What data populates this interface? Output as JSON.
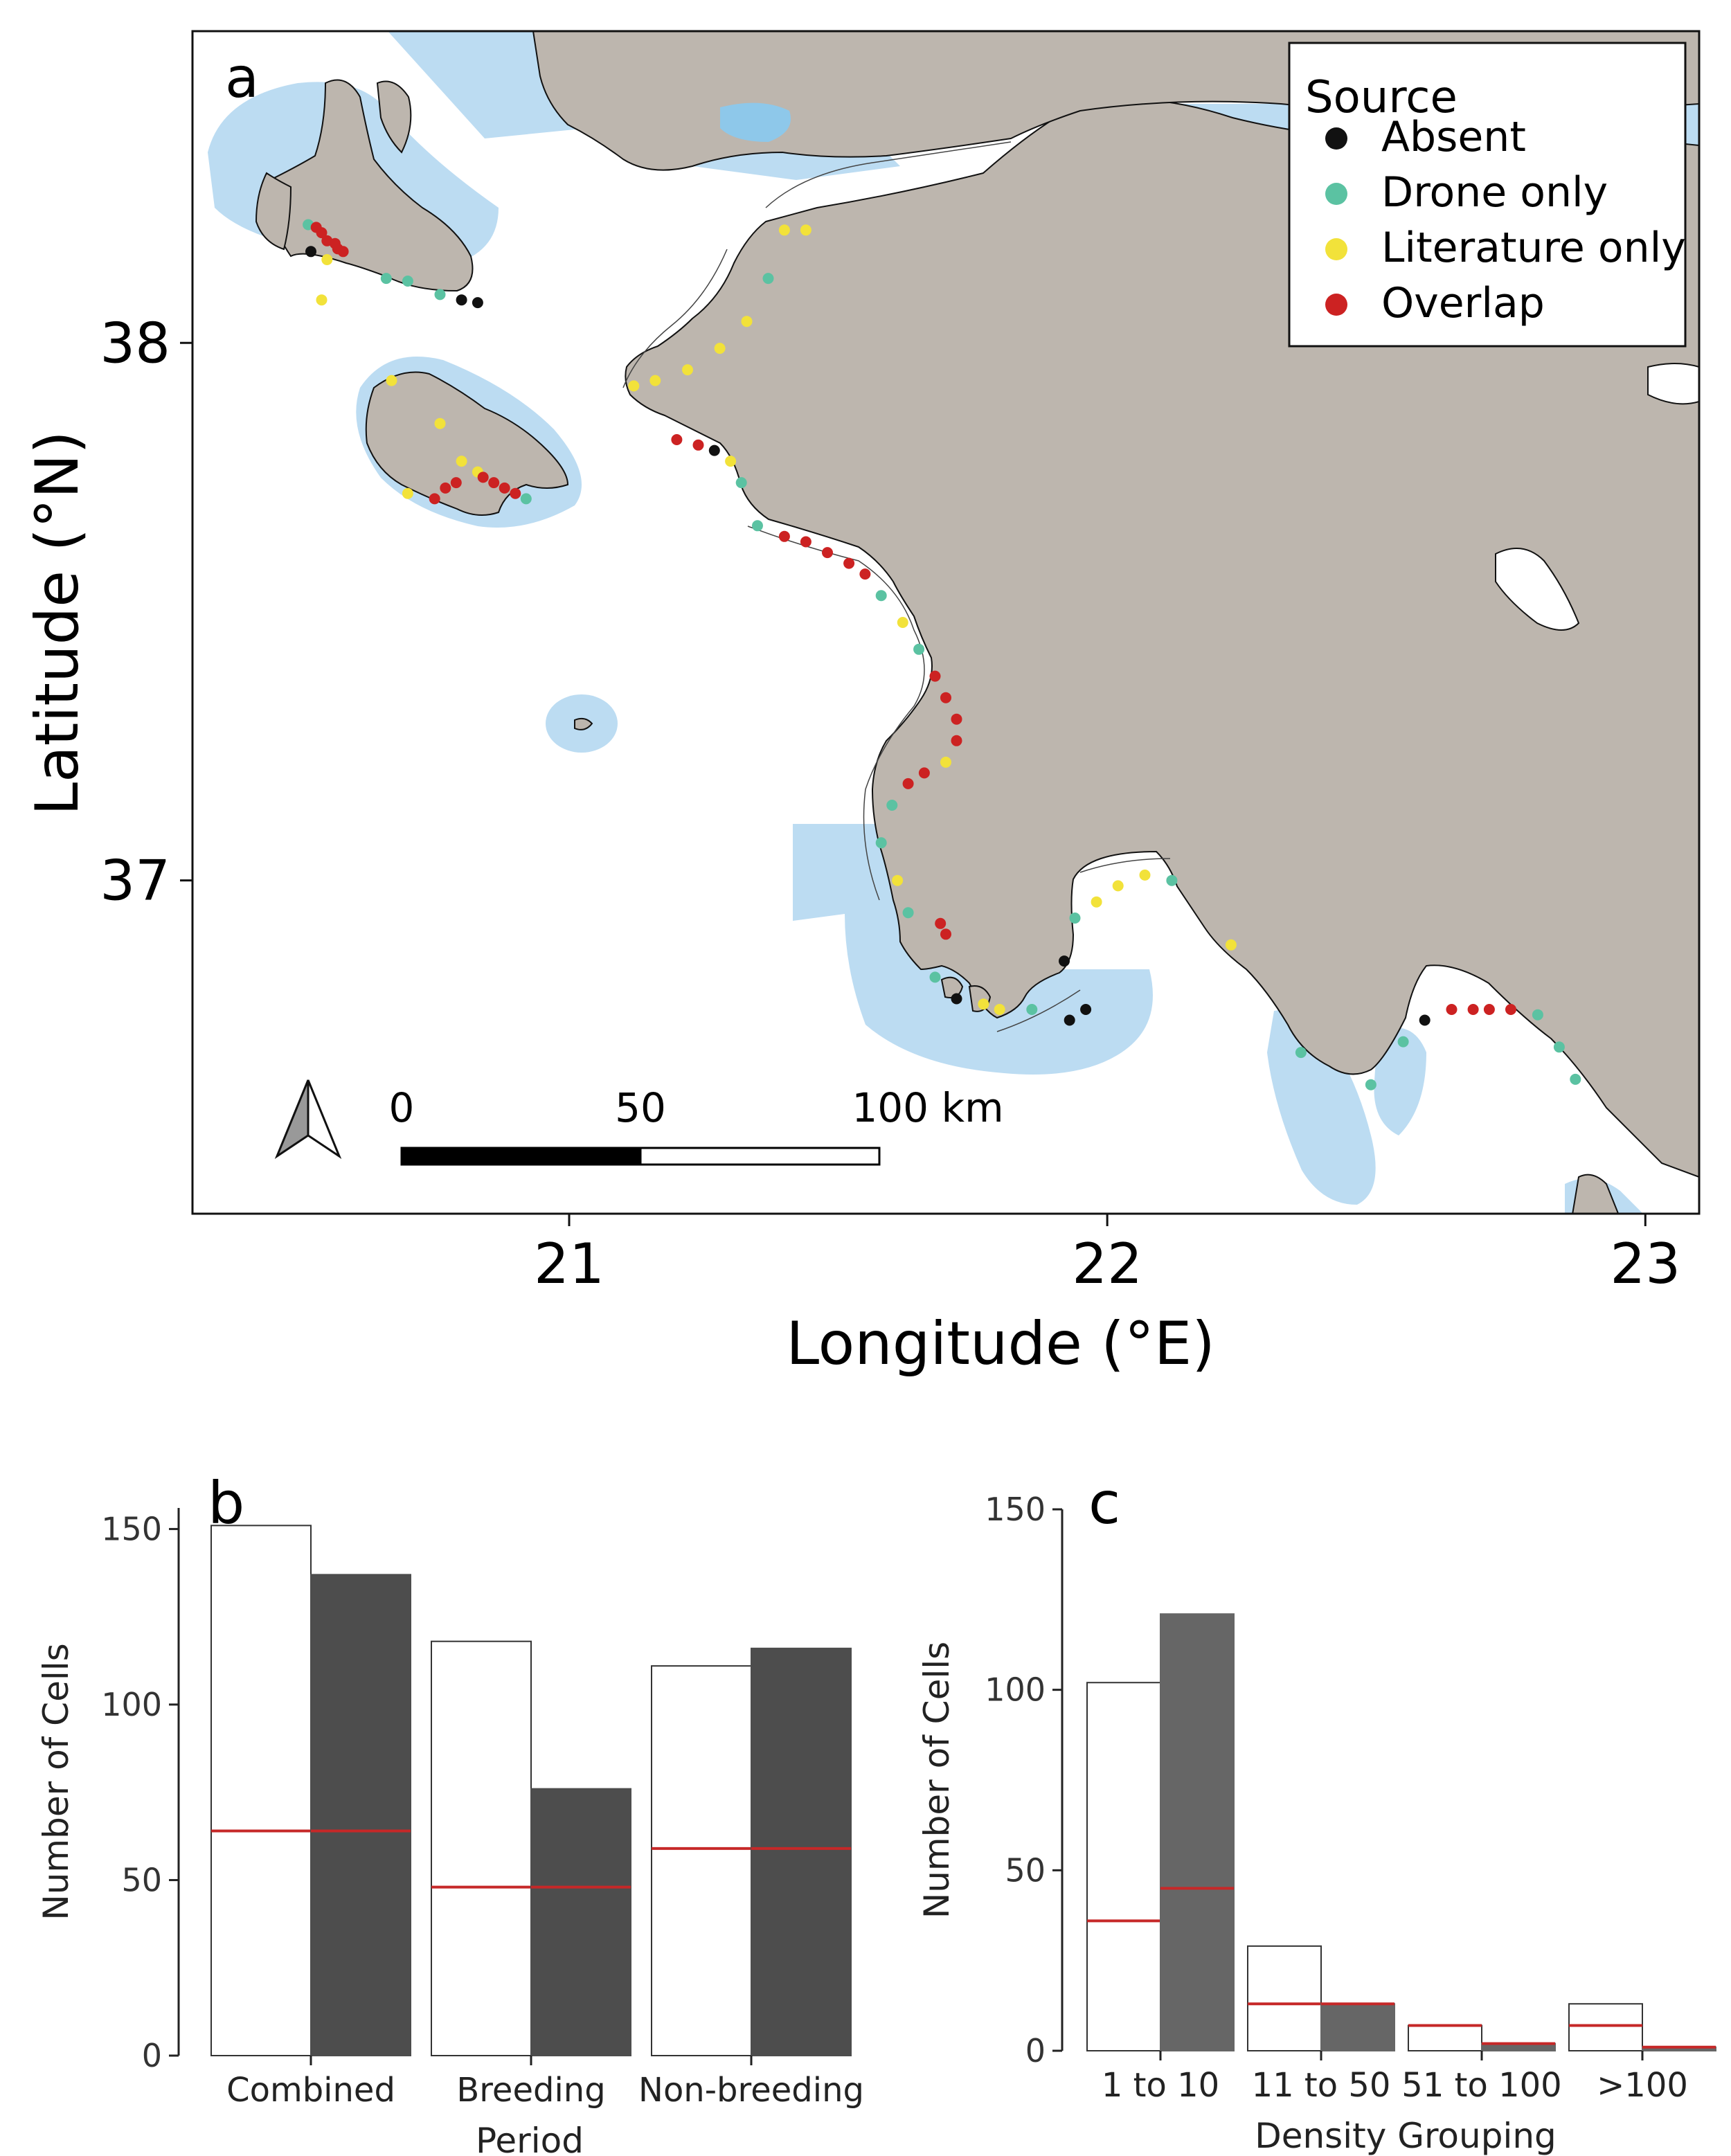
{
  "chart_data": [
    {
      "panel": "a",
      "type": "map",
      "xlabel": "Longitude (°E)",
      "ylabel": "Latitude (°N)",
      "xlim": [
        20.3,
        23.1
      ],
      "ylim": [
        36.38,
        38.58
      ],
      "x_ticks": [
        "21",
        "22",
        "23"
      ],
      "y_ticks": [
        "38",
        "37"
      ],
      "legend": {
        "title": "Source",
        "position": "top-right",
        "items": [
          {
            "label": "Absent",
            "color": "#111111"
          },
          {
            "label": "Drone only",
            "color": "#5bc2a2"
          },
          {
            "label": "Literature only",
            "color": "#f2e23a"
          },
          {
            "label": "Overlap",
            "color": "#cc2222"
          }
        ]
      },
      "scale_bar": {
        "ticks": [
          "0",
          "50",
          "100 km"
        ]
      },
      "colors": {
        "land": "#bdb6ae",
        "buffer": "#bcdcf2",
        "sea": "#ffffff",
        "outline": "#111111"
      },
      "icons": [
        "north-arrow-icon"
      ],
      "points": [
        {
          "lon": 20.515,
          "lat": 38.22,
          "source": "Drone only"
        },
        {
          "lon": 20.53,
          "lat": 38.215,
          "source": "Overlap"
        },
        {
          "lon": 20.54,
          "lat": 38.205,
          "source": "Overlap"
        },
        {
          "lon": 20.55,
          "lat": 38.19,
          "source": "Overlap"
        },
        {
          "lon": 20.565,
          "lat": 38.185,
          "source": "Overlap"
        },
        {
          "lon": 20.57,
          "lat": 38.175,
          "source": "Overlap"
        },
        {
          "lon": 20.58,
          "lat": 38.17,
          "source": "Overlap"
        },
        {
          "lon": 20.52,
          "lat": 38.17,
          "source": "Absent"
        },
        {
          "lon": 20.55,
          "lat": 38.155,
          "source": "Literature only"
        },
        {
          "lon": 20.54,
          "lat": 38.08,
          "source": "Literature only"
        },
        {
          "lon": 20.66,
          "lat": 38.12,
          "source": "Drone only"
        },
        {
          "lon": 20.7,
          "lat": 38.115,
          "source": "Drone only"
        },
        {
          "lon": 20.76,
          "lat": 38.09,
          "source": "Drone only"
        },
        {
          "lon": 20.8,
          "lat": 38.08,
          "source": "Absent"
        },
        {
          "lon": 20.83,
          "lat": 38.075,
          "source": "Absent"
        },
        {
          "lon": 20.67,
          "lat": 37.93,
          "source": "Literature only"
        },
        {
          "lon": 20.76,
          "lat": 37.85,
          "source": "Literature only"
        },
        {
          "lon": 20.8,
          "lat": 37.78,
          "source": "Literature only"
        },
        {
          "lon": 20.83,
          "lat": 37.76,
          "source": "Literature only"
        },
        {
          "lon": 20.84,
          "lat": 37.75,
          "source": "Overlap"
        },
        {
          "lon": 20.86,
          "lat": 37.74,
          "source": "Overlap"
        },
        {
          "lon": 20.88,
          "lat": 37.73,
          "source": "Overlap"
        },
        {
          "lon": 20.9,
          "lat": 37.72,
          "source": "Overlap"
        },
        {
          "lon": 20.79,
          "lat": 37.74,
          "source": "Overlap"
        },
        {
          "lon": 20.77,
          "lat": 37.73,
          "source": "Overlap"
        },
        {
          "lon": 20.75,
          "lat": 37.71,
          "source": "Overlap"
        },
        {
          "lon": 20.7,
          "lat": 37.72,
          "source": "Literature only"
        },
        {
          "lon": 20.92,
          "lat": 37.71,
          "source": "Drone only"
        },
        {
          "lon": 21.4,
          "lat": 38.21,
          "source": "Literature only"
        },
        {
          "lon": 21.44,
          "lat": 38.21,
          "source": "Literature only"
        },
        {
          "lon": 21.37,
          "lat": 38.12,
          "source": "Drone only"
        },
        {
          "lon": 21.33,
          "lat": 38.04,
          "source": "Literature only"
        },
        {
          "lon": 21.28,
          "lat": 37.99,
          "source": "Literature only"
        },
        {
          "lon": 21.22,
          "lat": 37.95,
          "source": "Literature only"
        },
        {
          "lon": 21.16,
          "lat": 37.93,
          "source": "Literature only"
        },
        {
          "lon": 21.12,
          "lat": 37.92,
          "source": "Literature only"
        },
        {
          "lon": 21.2,
          "lat": 37.82,
          "source": "Overlap"
        },
        {
          "lon": 21.24,
          "lat": 37.81,
          "source": "Overlap"
        },
        {
          "lon": 21.27,
          "lat": 37.8,
          "source": "Absent"
        },
        {
          "lon": 21.3,
          "lat": 37.78,
          "source": "Literature only"
        },
        {
          "lon": 21.32,
          "lat": 37.74,
          "source": "Drone only"
        },
        {
          "lon": 21.35,
          "lat": 37.66,
          "source": "Drone only"
        },
        {
          "lon": 21.4,
          "lat": 37.64,
          "source": "Overlap"
        },
        {
          "lon": 21.44,
          "lat": 37.63,
          "source": "Overlap"
        },
        {
          "lon": 21.48,
          "lat": 37.61,
          "source": "Overlap"
        },
        {
          "lon": 21.52,
          "lat": 37.59,
          "source": "Overlap"
        },
        {
          "lon": 21.55,
          "lat": 37.57,
          "source": "Overlap"
        },
        {
          "lon": 21.58,
          "lat": 37.53,
          "source": "Drone only"
        },
        {
          "lon": 21.62,
          "lat": 37.48,
          "source": "Literature only"
        },
        {
          "lon": 21.65,
          "lat": 37.43,
          "source": "Drone only"
        },
        {
          "lon": 21.68,
          "lat": 37.38,
          "source": "Overlap"
        },
        {
          "lon": 21.7,
          "lat": 37.34,
          "source": "Overlap"
        },
        {
          "lon": 21.72,
          "lat": 37.3,
          "source": "Overlap"
        },
        {
          "lon": 21.72,
          "lat": 37.26,
          "source": "Overlap"
        },
        {
          "lon": 21.7,
          "lat": 37.22,
          "source": "Literature only"
        },
        {
          "lon": 21.66,
          "lat": 37.2,
          "source": "Overlap"
        },
        {
          "lon": 21.63,
          "lat": 37.18,
          "source": "Overlap"
        },
        {
          "lon": 21.6,
          "lat": 37.14,
          "source": "Drone only"
        },
        {
          "lon": 21.58,
          "lat": 37.07,
          "source": "Drone only"
        },
        {
          "lon": 21.61,
          "lat": 37.0,
          "source": "Literature only"
        },
        {
          "lon": 21.63,
          "lat": 36.94,
          "source": "Drone only"
        },
        {
          "lon": 21.69,
          "lat": 36.92,
          "source": "Overlap"
        },
        {
          "lon": 21.7,
          "lat": 36.9,
          "source": "Overlap"
        },
        {
          "lon": 21.68,
          "lat": 36.82,
          "source": "Drone only"
        },
        {
          "lon": 21.72,
          "lat": 36.78,
          "source": "Absent"
        },
        {
          "lon": 21.77,
          "lat": 36.77,
          "source": "Literature only"
        },
        {
          "lon": 21.8,
          "lat": 36.76,
          "source": "Literature only"
        },
        {
          "lon": 21.86,
          "lat": 36.76,
          "source": "Drone only"
        },
        {
          "lon": 21.93,
          "lat": 36.74,
          "source": "Absent"
        },
        {
          "lon": 21.96,
          "lat": 36.76,
          "source": "Absent"
        },
        {
          "lon": 21.92,
          "lat": 36.85,
          "source": "Absent"
        },
        {
          "lon": 21.94,
          "lat": 36.93,
          "source": "Drone only"
        },
        {
          "lon": 21.98,
          "lat": 36.96,
          "source": "Literature only"
        },
        {
          "lon": 22.02,
          "lat": 36.99,
          "source": "Literature only"
        },
        {
          "lon": 22.07,
          "lat": 37.01,
          "source": "Literature only"
        },
        {
          "lon": 22.12,
          "lat": 37.0,
          "source": "Drone only"
        },
        {
          "lon": 22.23,
          "lat": 36.88,
          "source": "Literature only"
        },
        {
          "lon": 22.36,
          "lat": 36.68,
          "source": "Drone only"
        },
        {
          "lon": 22.49,
          "lat": 36.62,
          "source": "Drone only"
        },
        {
          "lon": 22.55,
          "lat": 36.7,
          "source": "Drone only"
        },
        {
          "lon": 22.59,
          "lat": 36.74,
          "source": "Absent"
        },
        {
          "lon": 22.64,
          "lat": 36.76,
          "source": "Overlap"
        },
        {
          "lon": 22.68,
          "lat": 36.76,
          "source": "Overlap"
        },
        {
          "lon": 22.71,
          "lat": 36.76,
          "source": "Overlap"
        },
        {
          "lon": 22.75,
          "lat": 36.76,
          "source": "Overlap"
        },
        {
          "lon": 22.8,
          "lat": 36.75,
          "source": "Drone only"
        },
        {
          "lon": 22.84,
          "lat": 36.69,
          "source": "Drone only"
        },
        {
          "lon": 22.87,
          "lat": 36.63,
          "source": "Drone only"
        }
      ]
    },
    {
      "panel": "b",
      "type": "bar",
      "xlabel": "Period",
      "ylabel": "Number of Cells",
      "categories": [
        "Combined",
        "Breeding",
        "Non-breeding"
      ],
      "series": [
        {
          "values": [
            151,
            118,
            111
          ],
          "fill": "#ffffff",
          "overlap": [
            64,
            48,
            59
          ]
        },
        {
          "values": [
            137,
            76,
            116
          ],
          "fill": "#4d4d4d",
          "overlap": [
            64,
            48,
            59
          ]
        }
      ],
      "ylim": [
        0,
        156
      ],
      "y_ticks": [
        "0",
        "50",
        "100",
        "150"
      ],
      "overlap_color": "#c62828"
    },
    {
      "panel": "c",
      "type": "bar",
      "xlabel": "Density Grouping",
      "ylabel": "Number of Cells",
      "categories": [
        "1 to 10",
        "11 to 50",
        "51 to 100",
        ">100"
      ],
      "series": [
        {
          "values": [
            102,
            29,
            7,
            13
          ],
          "fill": "#ffffff",
          "overlap": [
            36,
            13,
            7,
            7
          ]
        },
        {
          "values": [
            121,
            13,
            2,
            1
          ],
          "fill": "#666666",
          "overlap": [
            45,
            13,
            2,
            1
          ]
        }
      ],
      "ylim": [
        0,
        150
      ],
      "y_ticks": [
        "0",
        "50",
        "100",
        "150"
      ],
      "overlap_color": "#c62828"
    }
  ]
}
